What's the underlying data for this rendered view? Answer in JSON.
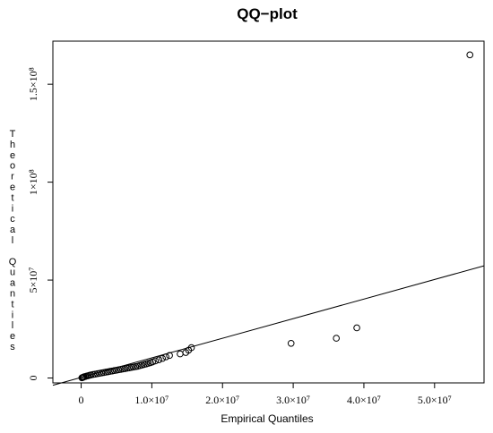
{
  "chart_data": {
    "type": "scatter",
    "title": "QQ−plot",
    "xlabel": "Empirical Quantiles",
    "ylabel": "Theoretical Quantiles",
    "xlim": [
      -4000000,
      57000000
    ],
    "ylim": [
      -2500000,
      172000000
    ],
    "x_ticks": [
      {
        "value": 0,
        "label": "0"
      },
      {
        "value": 10000000,
        "label": "1.0×10⁷"
      },
      {
        "value": 20000000,
        "label": "2.0×10⁷"
      },
      {
        "value": 30000000,
        "label": "3.0×10⁷"
      },
      {
        "value": 40000000,
        "label": "4.0×10⁷"
      },
      {
        "value": 50000000,
        "label": "5.0×10⁷"
      }
    ],
    "y_ticks": [
      {
        "value": 0,
        "label": "0"
      },
      {
        "value": 50000000,
        "label": "5×10⁷"
      },
      {
        "value": 100000000,
        "label": "1×10⁸"
      },
      {
        "value": 150000000,
        "label": "1.5×10⁸"
      }
    ],
    "reference_line": {
      "intercept": 300000,
      "slope": 1.0
    },
    "points": {
      "x": [
        100000,
        200000,
        300000,
        400000,
        600000,
        800000,
        1000000,
        1200000,
        1400000,
        1700000,
        2000000,
        2300000,
        2600000,
        2900000,
        3200000,
        3500000,
        3800000,
        4100000,
        4400000,
        4700000,
        5000000,
        5300000,
        5600000,
        5900000,
        6200000,
        6500000,
        6800000,
        7100000,
        7400000,
        7700000,
        8000000,
        8300000,
        8600000,
        8900000,
        9200000,
        9500000,
        9800000,
        10100000,
        10500000,
        11000000,
        11500000,
        12000000,
        12500000,
        14000000,
        14800000,
        15200000,
        15600000,
        29700000,
        36100000,
        39000000,
        55000000
      ],
      "y": [
        100000,
        250000,
        400000,
        600000,
        800000,
        1000000,
        1200000,
        1400000,
        1600000,
        1800000,
        2000000,
        2200000,
        2400000,
        2600000,
        2800000,
        3000000,
        3200000,
        3400000,
        3600000,
        3800000,
        4000000,
        4200000,
        4400000,
        4600000,
        4800000,
        5000000,
        5200000,
        5400000,
        5600000,
        5800000,
        6000000,
        6300000,
        6600000,
        6900000,
        7200000,
        7500000,
        7800000,
        8200000,
        8700000,
        9300000,
        10000000,
        10800000,
        11500000,
        12300000,
        13000000,
        14200000,
        15500000,
        17700000,
        20300000,
        25600000,
        165000000
      ]
    },
    "grid": false,
    "legend": "none"
  }
}
